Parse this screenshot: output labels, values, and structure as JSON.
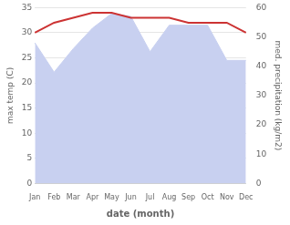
{
  "chart_data": {
    "type": "line",
    "categories": [
      "Jan",
      "Feb",
      "Mar",
      "Apr",
      "May",
      "Jun",
      "Jul",
      "Aug",
      "Sep",
      "Oct",
      "Nov",
      "Dec"
    ],
    "xlabel": "date (month)",
    "ylabel": "max temp (C)",
    "y2label": "med. precipitation (kg/m2)",
    "series": [
      {
        "type": "area",
        "axis": "y2",
        "color": "#c8d0f0",
        "values": [
          48,
          38,
          46,
          53,
          58,
          57,
          45,
          54,
          54,
          54,
          42,
          42
        ]
      },
      {
        "type": "line",
        "color": "#cc3333",
        "values": [
          30,
          32,
          33,
          34,
          34,
          33,
          33,
          33,
          32,
          32,
          32,
          30
        ]
      }
    ],
    "ylim": [
      0,
      35
    ],
    "yticks": [
      0,
      5,
      10,
      15,
      20,
      25,
      30,
      35
    ],
    "y2lim": [
      0,
      60
    ],
    "y2ticks": [
      0,
      10,
      20,
      30,
      40,
      50,
      60
    ],
    "grid": true
  }
}
